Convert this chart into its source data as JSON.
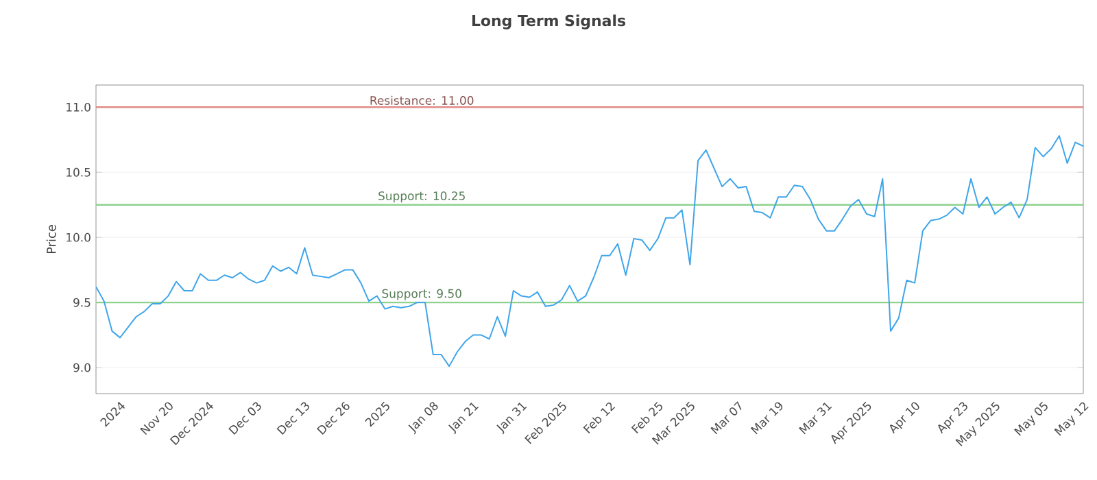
{
  "chart_data": {
    "type": "line",
    "title": "Long Term Signals",
    "ylabel": "Price",
    "categories": [
      null,
      null,
      null,
      "2024",
      null,
      null,
      null,
      null,
      null,
      "Nov 20",
      null,
      null,
      null,
      null,
      "Dec 2024",
      null,
      null,
      null,
      null,
      null,
      "Dec 03",
      null,
      null,
      null,
      null,
      null,
      "Dec 13",
      null,
      null,
      null,
      null,
      "Dec 26",
      null,
      null,
      null,
      null,
      "2025",
      null,
      null,
      null,
      null,
      null,
      "Jan 08",
      null,
      null,
      null,
      null,
      "Jan 21",
      null,
      null,
      null,
      null,
      null,
      "Jan 31",
      null,
      null,
      null,
      null,
      "Feb 2025",
      null,
      null,
      null,
      null,
      null,
      "Feb 12",
      null,
      null,
      null,
      null,
      null,
      "Feb 25",
      null,
      null,
      null,
      "Mar 2025",
      null,
      null,
      null,
      null,
      null,
      "Mar 07",
      null,
      null,
      null,
      null,
      "Mar 19",
      null,
      null,
      null,
      null,
      null,
      "Mar 31",
      null,
      null,
      null,
      null,
      "Apr 2025",
      null,
      null,
      null,
      null,
      null,
      "Apr 10",
      null,
      null,
      null,
      null,
      null,
      "Apr 23",
      null,
      null,
      null,
      "May 2025",
      null,
      null,
      null,
      null,
      null,
      "May 05",
      null,
      null,
      null,
      null,
      "May 12"
    ],
    "values": [
      9.62,
      9.51,
      9.28,
      9.23,
      9.31,
      9.39,
      9.43,
      9.49,
      9.49,
      9.55,
      9.66,
      9.59,
      9.59,
      9.72,
      9.67,
      9.67,
      9.71,
      9.69,
      9.73,
      9.68,
      9.65,
      9.67,
      9.78,
      9.74,
      9.77,
      9.72,
      9.92,
      9.71,
      9.7,
      9.69,
      9.72,
      9.75,
      9.75,
      9.65,
      9.51,
      9.55,
      9.45,
      9.47,
      9.46,
      9.47,
      9.5,
      9.5,
      9.1,
      9.1,
      9.01,
      9.12,
      9.2,
      9.25,
      9.25,
      9.22,
      9.39,
      9.24,
      9.59,
      9.55,
      9.54,
      9.58,
      9.47,
      9.48,
      9.52,
      9.63,
      9.51,
      9.55,
      9.69,
      9.86,
      9.86,
      9.95,
      9.71,
      9.99,
      9.98,
      9.9,
      9.99,
      10.15,
      10.15,
      10.21,
      9.79,
      10.59,
      10.67,
      10.53,
      10.39,
      10.45,
      10.38,
      10.39,
      10.2,
      10.19,
      10.15,
      10.31,
      10.31,
      10.4,
      10.39,
      10.29,
      10.14,
      10.05,
      10.05,
      10.14,
      10.24,
      10.29,
      10.18,
      10.16,
      10.45,
      9.28,
      9.38,
      9.67,
      9.65,
      10.05,
      10.13,
      10.14,
      10.17,
      10.23,
      10.18,
      10.45,
      10.23,
      10.31,
      10.18,
      10.23,
      10.27,
      10.15,
      10.29,
      10.69,
      10.62,
      10.68,
      10.78,
      10.57,
      10.73,
      10.7
    ],
    "color": "#3fa5ea",
    "ylim": [
      8.8,
      11.17
    ],
    "yticks": [
      {
        "value": 9.0,
        "label": "9.0"
      },
      {
        "value": 9.5,
        "label": "9.5"
      },
      {
        "value": 10.0,
        "label": "10.0"
      },
      {
        "value": 10.5,
        "label": "10.5"
      },
      {
        "value": 11.0,
        "label": "11.0"
      }
    ],
    "ref_lines": [
      {
        "axis": "y",
        "value": 11.0,
        "label": "Resistance: 11.00",
        "color": "#e08a86"
      },
      {
        "axis": "y",
        "value": 10.25,
        "label": "Support: 10.25",
        "color": "#8fd18f"
      },
      {
        "axis": "y",
        "value": 9.5,
        "label": "Support: 9.50",
        "color": "#8fd18f"
      }
    ],
    "grid": "y",
    "marker": "none",
    "line_style": "solid"
  }
}
